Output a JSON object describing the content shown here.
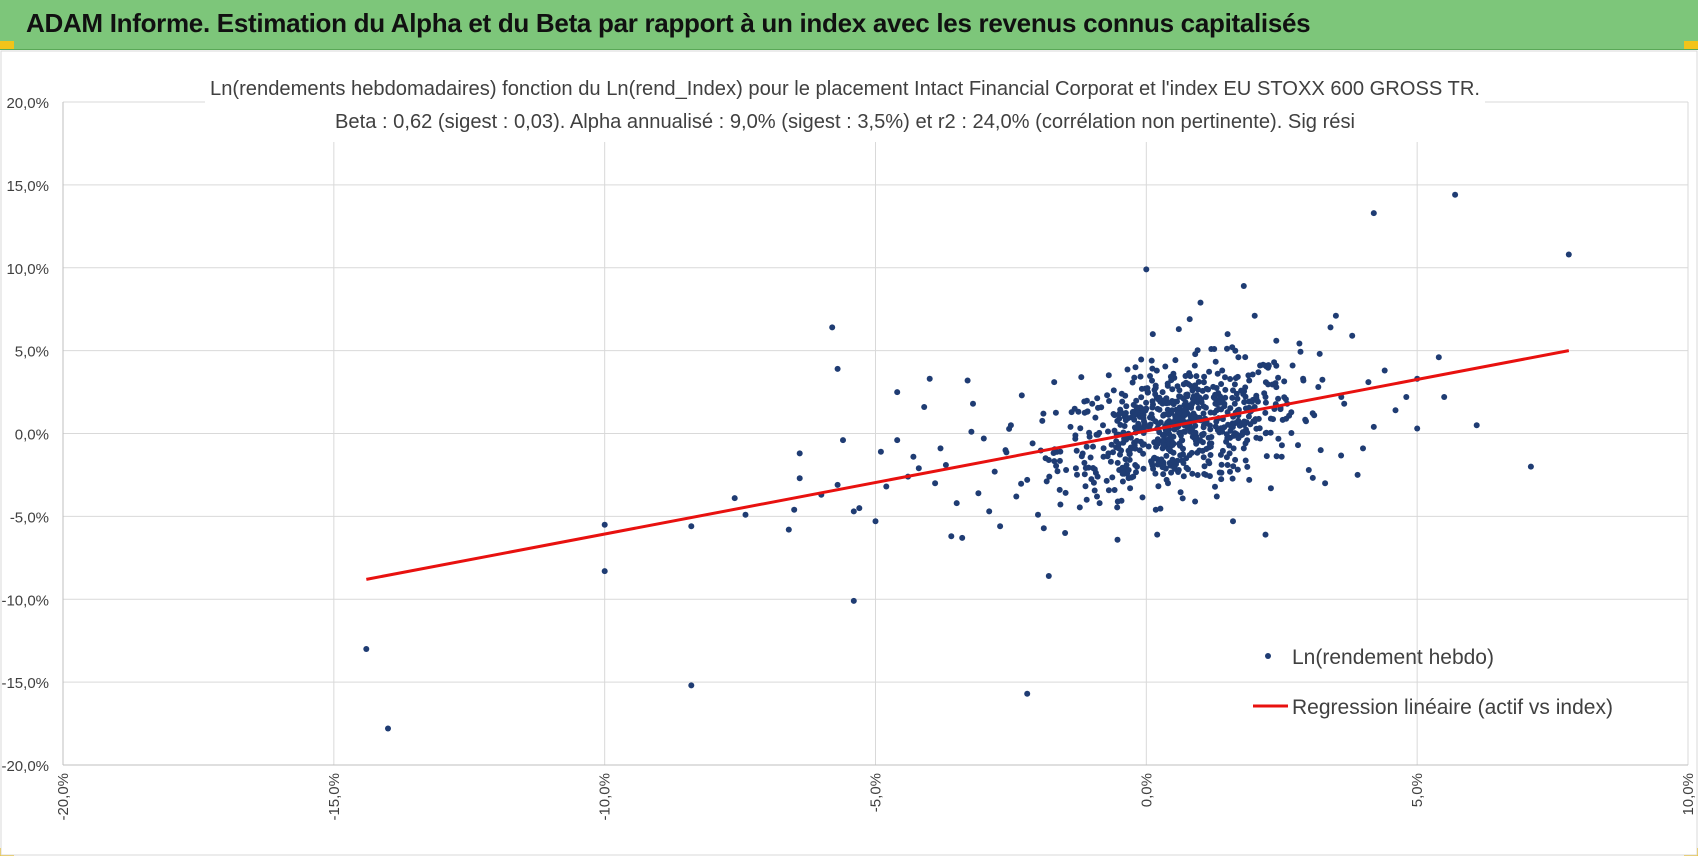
{
  "banner": {
    "title": "ADAM Informe. Estimation du Alpha et du Beta par rapport à un index avec les revenus connus capitalisés",
    "background": "#7dc67a",
    "corner_color": "#f2c41a"
  },
  "chart_data": {
    "type": "scatter",
    "title": "Ln(rendements hebdomadaires) fonction du Ln(rend_Index) pour le placement Intact Financial Corporat et l'index EU STOXX 600 GROSS TR.",
    "subtitle": "Beta : 0,62 (sigest : 0,03). Alpha annualisé : 9,0% (sigest : 3,5%) et r2 : 24,0% (corrélation non pertinente). Sig rési",
    "xlabel": "",
    "ylabel": "",
    "xlim": [
      -0.2,
      0.1
    ],
    "ylim": [
      -0.2,
      0.2
    ],
    "x_ticks": [
      -0.2,
      -0.15,
      -0.1,
      -0.05,
      0.0,
      0.05,
      0.1
    ],
    "x_tick_labels": [
      "-20,0%",
      "-15,0%",
      "-10,0%",
      "-5,0%",
      "0,0%",
      "5,0%",
      "10,0%"
    ],
    "y_ticks": [
      0.2,
      0.15,
      0.1,
      0.05,
      0.0,
      -0.05,
      -0.1,
      -0.15,
      -0.2
    ],
    "y_tick_labels": [
      "20,0%",
      "15,0%",
      "10,0%",
      "5,0%",
      "0,0%",
      "-5,0%",
      "-10,0%",
      "-15,0%",
      "-20,0%"
    ],
    "grid": true,
    "legend_position": "bottom-right",
    "series": [
      {
        "name": "Ln(rendement hebdo)",
        "kind": "scatter",
        "color": "#1f3c73",
        "points": [
          [
            -0.144,
            -0.13
          ],
          [
            -0.14,
            -0.178
          ],
          [
            -0.1,
            -0.055
          ],
          [
            -0.1,
            -0.083
          ],
          [
            -0.084,
            -0.056
          ],
          [
            -0.084,
            -0.152
          ],
          [
            -0.076,
            -0.039
          ],
          [
            -0.074,
            -0.049
          ],
          [
            -0.066,
            -0.058
          ],
          [
            -0.065,
            -0.046
          ],
          [
            -0.064,
            -0.027
          ],
          [
            -0.064,
            -0.012
          ],
          [
            -0.06,
            -0.037
          ],
          [
            -0.058,
            0.064
          ],
          [
            -0.057,
            0.039
          ],
          [
            -0.057,
            -0.031
          ],
          [
            -0.056,
            -0.004
          ],
          [
            -0.054,
            -0.047
          ],
          [
            -0.054,
            -0.101
          ],
          [
            -0.053,
            -0.045
          ],
          [
            -0.05,
            -0.053
          ],
          [
            -0.049,
            -0.011
          ],
          [
            -0.048,
            -0.032
          ],
          [
            -0.046,
            0.025
          ],
          [
            -0.046,
            -0.004
          ],
          [
            -0.044,
            -0.026
          ],
          [
            -0.043,
            -0.014
          ],
          [
            -0.042,
            -0.021
          ],
          [
            -0.041,
            0.016
          ],
          [
            -0.04,
            0.033
          ],
          [
            -0.039,
            -0.03
          ],
          [
            -0.038,
            -0.009
          ],
          [
            -0.037,
            -0.019
          ],
          [
            -0.036,
            -0.062
          ],
          [
            -0.035,
            -0.042
          ],
          [
            -0.034,
            -0.063
          ],
          [
            -0.033,
            0.032
          ],
          [
            -0.032,
            0.018
          ],
          [
            -0.031,
            -0.036
          ],
          [
            -0.03,
            -0.003
          ],
          [
            -0.029,
            -0.047
          ],
          [
            -0.028,
            -0.023
          ],
          [
            -0.027,
            -0.056
          ],
          [
            -0.026,
            -0.01
          ],
          [
            -0.025,
            0.005
          ],
          [
            -0.024,
            -0.038
          ],
          [
            -0.023,
            0.023
          ],
          [
            -0.022,
            -0.028
          ],
          [
            -0.021,
            -0.006
          ],
          [
            -0.02,
            -0.049
          ],
          [
            -0.019,
            0.012
          ],
          [
            -0.018,
            -0.016
          ],
          [
            -0.017,
            0.031
          ],
          [
            -0.016,
            -0.034
          ],
          [
            -0.015,
            -0.06
          ],
          [
            -0.014,
            0.004
          ],
          [
            -0.013,
            -0.021
          ],
          [
            -0.012,
            0.034
          ],
          [
            -0.011,
            -0.008
          ],
          [
            -0.011,
            -0.04
          ],
          [
            -0.022,
            -0.157
          ],
          [
            -0.018,
            -0.086
          ],
          [
            -0.01,
            0.018
          ],
          [
            -0.009,
            -0.026
          ],
          [
            -0.008,
            0.005
          ],
          [
            -0.007,
            -0.012
          ],
          [
            -0.006,
            0.026
          ],
          [
            -0.005,
            -0.022
          ],
          [
            -0.004,
            0.01
          ],
          [
            -0.003,
            -0.033
          ],
          [
            -0.002,
            0.04
          ],
          [
            -0.001,
            -0.005
          ],
          [
            0.0,
            0.099
          ],
          [
            0.0,
            0.015
          ],
          [
            0.001,
            -0.017
          ],
          [
            0.001,
            0.044
          ],
          [
            0.002,
            0.003
          ],
          [
            0.002,
            -0.061
          ],
          [
            0.003,
            0.025
          ],
          [
            0.003,
            -0.009
          ],
          [
            0.004,
            -0.03
          ],
          [
            0.004,
            0.012
          ],
          [
            0.005,
            0.036
          ],
          [
            0.005,
            -0.002
          ],
          [
            0.006,
            0.063
          ],
          [
            0.006,
            -0.022
          ],
          [
            0.007,
            0.017
          ],
          [
            0.007,
            0.005
          ],
          [
            0.008,
            0.069
          ],
          [
            0.008,
            -0.013
          ],
          [
            0.009,
            0.029
          ],
          [
            0.009,
            -0.041
          ],
          [
            0.01,
            0.079
          ],
          [
            0.01,
            0.008
          ],
          [
            0.011,
            -0.025
          ],
          [
            0.011,
            0.022
          ],
          [
            0.012,
            0.051
          ],
          [
            0.012,
            -0.006
          ],
          [
            0.013,
            0.014
          ],
          [
            0.013,
            -0.038
          ],
          [
            0.014,
            0.038
          ],
          [
            0.014,
            0.001
          ],
          [
            0.015,
            0.06
          ],
          [
            0.015,
            -0.019
          ],
          [
            0.016,
            0.026
          ],
          [
            0.016,
            -0.053
          ],
          [
            0.017,
            0.011
          ],
          [
            0.017,
            0.046
          ],
          [
            0.018,
            -0.009
          ],
          [
            0.018,
            0.089
          ],
          [
            0.019,
            0.032
          ],
          [
            0.019,
            -0.028
          ],
          [
            0.02,
            0.016
          ],
          [
            0.02,
            0.071
          ],
          [
            0.021,
            -0.003
          ],
          [
            0.021,
            0.041
          ],
          [
            0.022,
            -0.061
          ],
          [
            0.022,
            0.022
          ],
          [
            0.023,
            0.009
          ],
          [
            0.023,
            -0.033
          ],
          [
            0.024,
            0.056
          ],
          [
            0.024,
            0.028
          ],
          [
            0.025,
            -0.014
          ],
          [
            0.026,
            0.018
          ],
          [
            0.027,
            0.041
          ],
          [
            0.028,
            -0.007
          ],
          [
            0.029,
            0.032
          ],
          [
            0.03,
            -0.022
          ],
          [
            0.031,
            0.011
          ],
          [
            0.032,
            0.048
          ],
          [
            0.033,
            -0.03
          ],
          [
            0.034,
            0.064
          ],
          [
            0.035,
            0.071
          ],
          [
            0.036,
            0.022
          ],
          [
            0.038,
            0.059
          ],
          [
            0.039,
            -0.025
          ],
          [
            0.04,
            -0.009
          ],
          [
            0.041,
            0.031
          ],
          [
            0.042,
            0.133
          ],
          [
            0.042,
            0.004
          ],
          [
            0.044,
            0.038
          ],
          [
            0.046,
            0.014
          ],
          [
            0.048,
            0.022
          ],
          [
            0.05,
            0.033
          ],
          [
            0.05,
            0.003
          ],
          [
            0.054,
            0.046
          ],
          [
            0.055,
            0.022
          ],
          [
            0.057,
            0.144
          ],
          [
            0.061,
            0.005
          ],
          [
            0.071,
            -0.02
          ],
          [
            0.078,
            0.108
          ]
        ]
      },
      {
        "name": "Regression linéaire (actif vs index)",
        "kind": "line",
        "color": "#e8110f",
        "x": [
          -0.144,
          0.078
        ],
        "y": [
          -0.088,
          0.05
        ]
      }
    ]
  }
}
